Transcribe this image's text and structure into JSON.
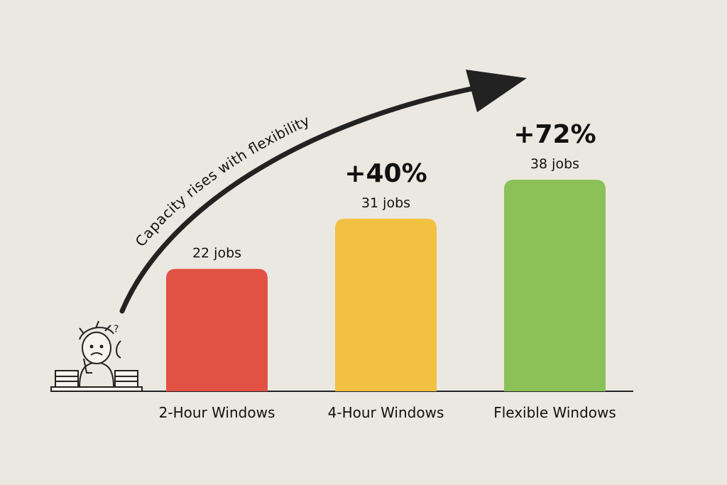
{
  "chart_data": {
    "type": "bar",
    "categories": [
      "2-Hour Windows",
      "4-Hour Windows",
      "Flexible Windows"
    ],
    "values": [
      22,
      31,
      38
    ],
    "unit": "jobs",
    "data_labels": [
      "22 jobs",
      "31 jobs",
      "38 jobs"
    ],
    "change_labels": [
      "",
      "+40%",
      "+72%"
    ],
    "colors": [
      "#e25244",
      "#f3c142",
      "#8cc158"
    ],
    "annotation": "Capacity rises with flexibility",
    "annotation_icon": "rising-arrow-icon",
    "decoration_icon": "stressed-person-at-desk-icon",
    "title": "",
    "xlabel": "",
    "ylabel": "",
    "ylim": [
      0,
      40
    ],
    "grid": false,
    "legend": "none"
  }
}
